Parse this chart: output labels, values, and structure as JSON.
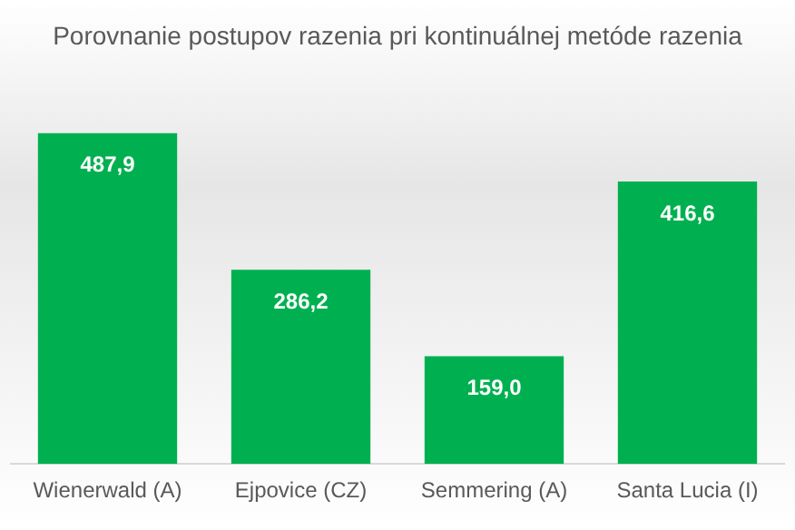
{
  "chart_data": {
    "type": "bar",
    "title": "Porovnanie postupov razenia pri kontinuálnej metóde razenia",
    "categories": [
      "Wienerwald (A)",
      "Ejpovice (CZ)",
      "Semmering (A)",
      "Santa Lucia (I)"
    ],
    "values": [
      487.9,
      286.2,
      159.0,
      416.6
    ],
    "value_labels": [
      "487,9",
      "286,2",
      "159,0",
      "416,6"
    ],
    "color": "#00b050",
    "tick_labels": "x",
    "grid": false,
    "legend": false
  }
}
